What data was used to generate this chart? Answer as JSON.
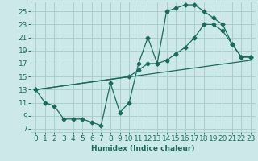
{
  "xlabel": "Humidex (Indice chaleur)",
  "bg_color": "#cce8e8",
  "grid_color": "#aacece",
  "line_color": "#1a6b5e",
  "xlim": [
    -0.5,
    23.5
  ],
  "ylim": [
    6.5,
    26.5
  ],
  "xticks": [
    0,
    1,
    2,
    3,
    4,
    5,
    6,
    7,
    8,
    9,
    10,
    11,
    12,
    13,
    14,
    15,
    16,
    17,
    18,
    19,
    20,
    21,
    22,
    23
  ],
  "yticks": [
    7,
    9,
    11,
    13,
    15,
    17,
    19,
    21,
    23,
    25
  ],
  "line1_x": [
    0,
    1,
    2,
    3,
    4,
    5,
    6,
    7,
    8,
    9,
    10,
    11,
    12,
    13,
    14,
    15,
    16,
    17,
    18,
    19,
    20,
    21,
    22,
    23
  ],
  "line1_y": [
    13,
    11,
    10.5,
    8.5,
    8.5,
    8.5,
    8,
    7.5,
    14,
    9.5,
    11,
    17,
    21,
    17,
    25,
    25.5,
    26,
    26,
    25,
    24,
    23,
    20,
    18,
    18
  ],
  "line2_x": [
    0,
    10,
    11,
    12,
    13,
    14,
    15,
    16,
    17,
    18,
    19,
    20,
    21,
    22,
    23
  ],
  "line2_y": [
    13,
    15,
    16,
    17,
    17,
    17.5,
    18.5,
    19.5,
    21,
    23,
    23,
    22,
    20,
    18,
    18
  ],
  "line3_x": [
    0,
    23
  ],
  "line3_y": [
    13,
    17.5
  ],
  "marker": "D",
  "markersize": 2.5,
  "fontsize": 6.5,
  "lw": 0.9
}
